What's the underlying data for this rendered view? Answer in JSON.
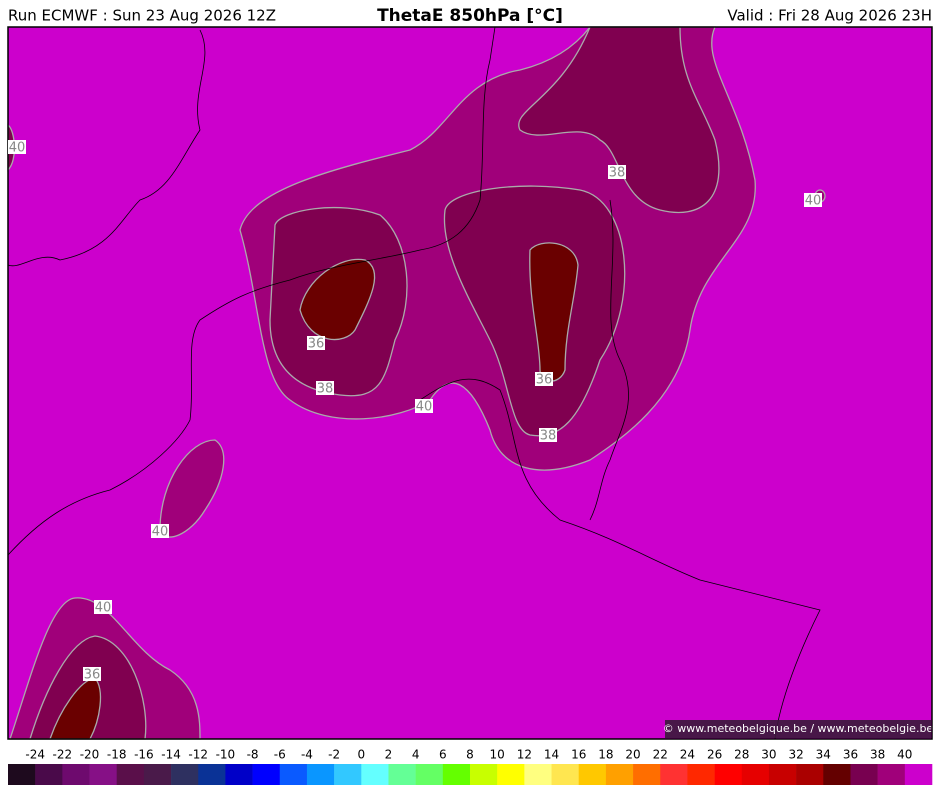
{
  "header": {
    "run": "Run ECMWF : Sun 23 Aug 2026 12Z",
    "title": "ThetaE 850hPa [°C]",
    "valid": "Valid : Fri 28 Aug 2026 23H"
  },
  "contour_labels": [
    "40",
    "38",
    "40",
    "36",
    "38",
    "40",
    "36",
    "38",
    "40",
    "40",
    "36"
  ],
  "copyright": "© www.meteobelgique.be / www.meteobelgie.be",
  "colorbar": {
    "labels": [
      -24,
      -22,
      -20,
      -18,
      -16,
      -14,
      -12,
      -10,
      -8,
      -6,
      -4,
      -2,
      0,
      2,
      4,
      6,
      8,
      10,
      12,
      14,
      16,
      18,
      20,
      22,
      24,
      26,
      28,
      30,
      32,
      34,
      36,
      38,
      40
    ],
    "colors": [
      "#1e0a1e",
      "#4a0a4a",
      "#6e0a6e",
      "#861086",
      "#5a0f4a",
      "#4a1a4a",
      "#2e3060",
      "#0a3296",
      "#0000c8",
      "#0000ff",
      "#0a5aff",
      "#0a96ff",
      "#32c8ff",
      "#64ffff",
      "#64ff96",
      "#64ff64",
      "#64ff00",
      "#c8ff00",
      "#ffff00",
      "#ffff80",
      "#ffe650",
      "#ffc800",
      "#ffa000",
      "#ff6e00",
      "#ff3232",
      "#ff2800",
      "#ff0000",
      "#e60000",
      "#c80000",
      "#aa0000",
      "#640000",
      "#780050",
      "#a0007a",
      "#cc00cc"
    ]
  }
}
